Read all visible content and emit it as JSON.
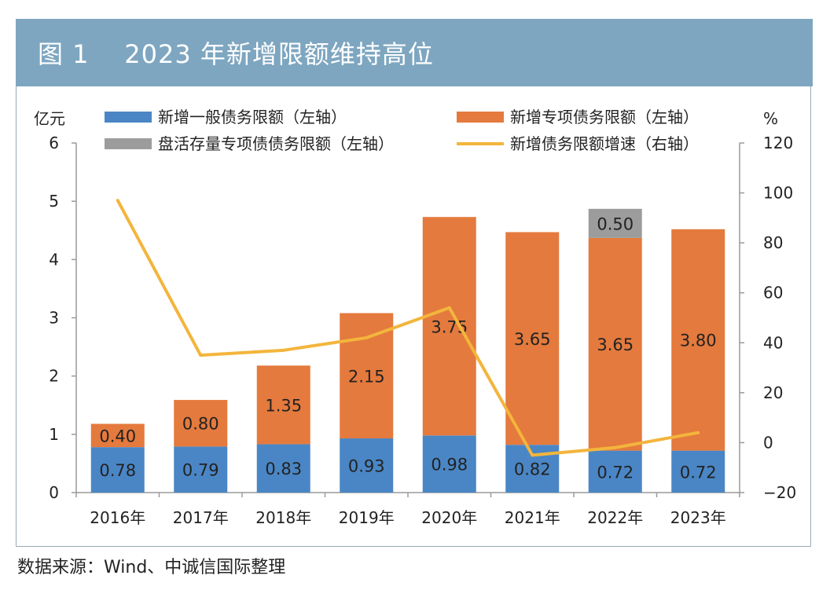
{
  "figure": {
    "label": "图 1",
    "title": "2023 年新增限额维持高位",
    "source": "数据来源：Wind、中诚信国际整理"
  },
  "colors": {
    "header": "#7ea6c0",
    "general": "#4a86c5",
    "special": "#e47a3d",
    "stock": "#9c9c9c",
    "growth": "#f3b53c"
  },
  "chart_data": {
    "type": "bar",
    "stacked": true,
    "categories": [
      "2016年",
      "2017年",
      "2018年",
      "2019年",
      "2020年",
      "2021年",
      "2022年",
      "2023年"
    ],
    "series": [
      {
        "name": "新增一般债务限额（左轴）",
        "axis": "left",
        "kind": "bar",
        "color": "#4a86c5",
        "values": [
          0.78,
          0.79,
          0.83,
          0.93,
          0.98,
          0.82,
          0.72,
          0.72
        ],
        "labels": [
          "0.78",
          "0.79",
          "0.83",
          "0.93",
          "0.98",
          "0.82",
          "0.72",
          "0.72"
        ]
      },
      {
        "name": "新增专项债务限额（左轴）",
        "axis": "left",
        "kind": "bar",
        "color": "#e47a3d",
        "values": [
          0.4,
          0.8,
          1.35,
          2.15,
          3.75,
          3.65,
          3.65,
          3.8
        ],
        "labels": [
          "0.40",
          "0.80",
          "1.35",
          "2.15",
          "3.75",
          "3.65",
          "3.65",
          "3.80"
        ]
      },
      {
        "name": "盘活存量专项债债务限额（左轴）",
        "axis": "left",
        "kind": "bar",
        "color": "#9c9c9c",
        "values": [
          0,
          0,
          0,
          0,
          0,
          0,
          0.5,
          0
        ],
        "labels": [
          "",
          "",
          "",
          "",
          "",
          "",
          "0.50",
          ""
        ]
      },
      {
        "name": "新增债务限额增速（右轴）",
        "axis": "right",
        "kind": "line",
        "color": "#f3b53c",
        "values": [
          97,
          35,
          37,
          42,
          54,
          -5,
          -2,
          4
        ]
      }
    ],
    "yleft": {
      "unit": "亿元",
      "range": [
        0,
        6
      ],
      "ticks": [
        "0",
        "1",
        "2",
        "3",
        "4",
        "5",
        "6"
      ]
    },
    "yright": {
      "unit": "%",
      "range": [
        -20,
        120
      ],
      "ticks": [
        "−20",
        "0",
        "20",
        "40",
        "60",
        "80",
        "100",
        "120"
      ]
    },
    "legend": "top",
    "grid": false
  }
}
